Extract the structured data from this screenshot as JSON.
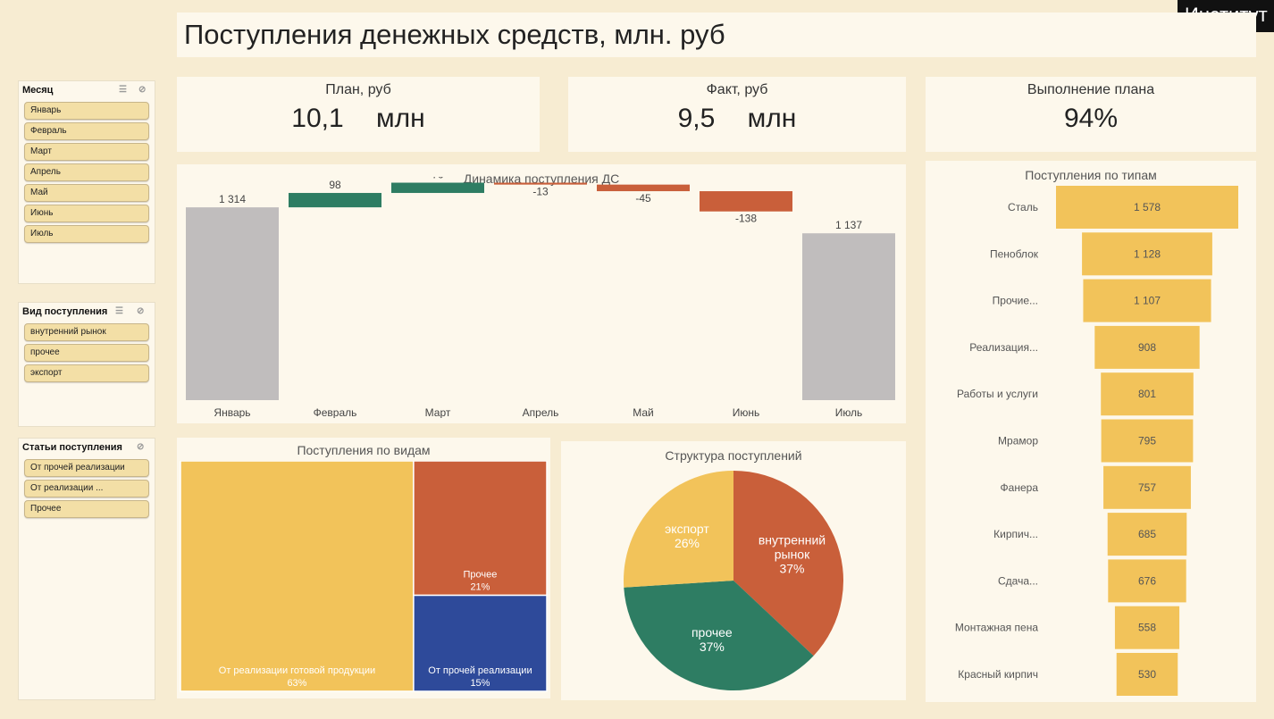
{
  "header": {
    "title": "Поступления денежных средств, млн. руб",
    "brand": "Институт"
  },
  "colors": {
    "gold": "#f2c35a",
    "green": "#2e7d63",
    "orange": "#c95f3a",
    "blue": "#2e4a9a",
    "grey": "#c0bdbd"
  },
  "slicers": {
    "month": {
      "title": "Месяц",
      "items": [
        "Январь",
        "Февраль",
        "Март",
        "Апрель",
        "Май",
        "Июнь",
        "Июль"
      ]
    },
    "type": {
      "title": "Вид поступления",
      "items": [
        "внутренний  рынок",
        "прочее",
        "экспорт"
      ]
    },
    "articles": {
      "title": "Статьи поступления",
      "items": [
        "От прочей  реализации",
        "От реализации  ...",
        "Прочее"
      ]
    }
  },
  "kpis": {
    "plan": {
      "title": "План, руб",
      "value": "10,1 млн"
    },
    "fact": {
      "title": "Факт, руб",
      "value": "9,5 млн"
    },
    "completion": {
      "title": "Выполнение плана",
      "value": "94%"
    }
  },
  "chart_data": [
    {
      "id": "waterfall",
      "type": "bar",
      "title": "Динамика поступления ДС",
      "categories": [
        "Январь",
        "Февраль",
        "Март",
        "Апрель",
        "Май",
        "Июнь",
        "Июль"
      ],
      "values": [
        1314,
        98,
        70,
        -13,
        -45,
        -138,
        1137
      ],
      "labels": [
        "1 314",
        "98",
        "70",
        "-13",
        "-45",
        "-138",
        "1 137"
      ],
      "kinds": [
        "total",
        "delta",
        "delta",
        "delta",
        "delta",
        "delta",
        "total"
      ]
    },
    {
      "id": "treemap",
      "type": "heatmap",
      "title": "Поступления по видам",
      "items": [
        {
          "name": "От реализации готовой продукции",
          "pct": "63%",
          "value": 63
        },
        {
          "name": "Прочее",
          "pct": "21%",
          "value": 21
        },
        {
          "name": "От прочей реализации",
          "pct": "15%",
          "value": 15
        }
      ]
    },
    {
      "id": "pie",
      "type": "pie",
      "title": "Структура поступлений",
      "slices": [
        {
          "name": "внутренний рынок",
          "pct": "37%",
          "value": 37
        },
        {
          "name": "прочее",
          "pct": "37%",
          "value": 37
        },
        {
          "name": "экспорт",
          "pct": "26%",
          "value": 26
        }
      ]
    },
    {
      "id": "funnel",
      "type": "bar",
      "title": "Поступления по типам",
      "categories": [
        "Сталь",
        "Пеноблок",
        "Прочие...",
        "Реализация...",
        "Работы и услуги",
        "Мрамор",
        "Фанера",
        "Кирпич...",
        "Сдача...",
        "Монтажная пена",
        "Красный кирпич"
      ],
      "values": [
        1578,
        1128,
        1107,
        908,
        801,
        795,
        757,
        685,
        676,
        558,
        530
      ],
      "labels": [
        "1 578",
        "1 128",
        "1 107",
        "908",
        "801",
        "795",
        "757",
        "685",
        "676",
        "558",
        "530"
      ]
    }
  ]
}
